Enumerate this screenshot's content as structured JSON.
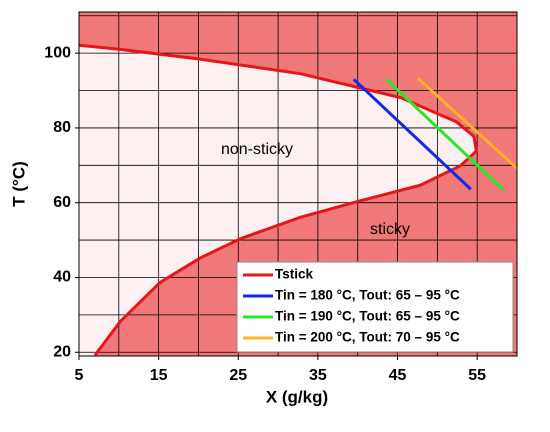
{
  "chart_data": {
    "type": "line",
    "x_label": "X (g/kg)",
    "y_label": "T (°C)",
    "xlim": [
      5,
      60
    ],
    "ylim": [
      19,
      111
    ],
    "xticks": [
      5,
      15,
      25,
      35,
      45,
      55
    ],
    "yticks": [
      20,
      40,
      60,
      80,
      100
    ],
    "xgrid": [
      10,
      15,
      20,
      25,
      30,
      35,
      40,
      45,
      50,
      55
    ],
    "ygrid": [
      20,
      30,
      40,
      50,
      60,
      70,
      80,
      90,
      100,
      110
    ],
    "grid": true,
    "legend": "lower right",
    "annotations": [
      "non-sticky",
      "sticky"
    ],
    "region_colors": {
      "outside": "#f07878",
      "inside": "#fdf0f0"
    },
    "series": [
      {
        "name": "Tstick",
        "color": "#e8141c",
        "x": [
          7.0,
          10.2,
          15.2,
          20.2,
          25.3,
          32.8,
          40.3,
          47.9,
          52.9,
          54.9,
          54.6,
          52.4,
          45.4,
          32.8,
          20.2,
          10.2,
          5
        ],
        "values": [
          19.2,
          28.3,
          38.7,
          45.2,
          50.4,
          56.1,
          60.5,
          64.7,
          69.9,
          73.8,
          77.7,
          81.6,
          88.1,
          94.5,
          98.4,
          101.0,
          102.1
        ]
      },
      {
        "name": "Tin = 180 °C, Tout: 65 – 95 °C",
        "color": "#1428e6",
        "x": [
          39.5,
          54.2
        ],
        "values": [
          93,
          63.6
        ]
      },
      {
        "name": "Tin = 190 °C, Tout: 65 – 95 °C",
        "color": "#28e628",
        "x": [
          43.6,
          58.3
        ],
        "values": [
          93,
          63.4
        ]
      },
      {
        "name": "Tin = 200 °C, Tout: 70 – 95 °C",
        "color": "#ffb428",
        "x": [
          47.6,
          60.1
        ],
        "values": [
          93.2,
          69
        ]
      }
    ]
  }
}
